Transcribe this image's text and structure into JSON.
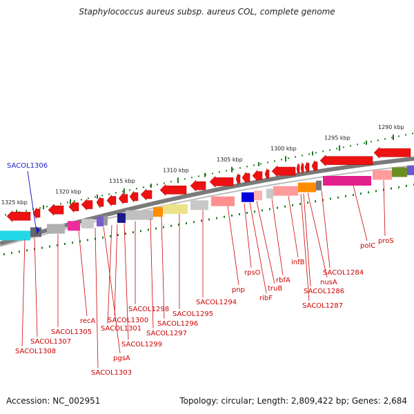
{
  "title": "Staphylococcus aureus subsp. aureus COL, complete genome",
  "footer": {
    "accession": "Accession: NC_002951",
    "summary": "Topology: circular; Length: 2,809,422 bp; Genes: 2,684"
  },
  "colors": {
    "backbone": "#7a7a7a",
    "gene": "#ee1111",
    "scale": "#1f7a1f",
    "label": "#cc0000",
    "highlight": "#1a1acc"
  },
  "scale_labels": [
    "1290 kbp",
    "1295 kbp",
    "1300 kbp",
    "1305 kbp",
    "1310 kbp",
    "1315 kbp",
    "1320 kbp",
    "1325 kbp"
  ],
  "highlighted_gene": "SACOL1306",
  "gene_labels": [
    "proS",
    "polC",
    "SACOL1284",
    "nusA",
    "SACOL1286",
    "SACOL1287",
    "infB",
    "rbfA",
    "truB",
    "ribF",
    "rpsO",
    "pnp",
    "SACOL1294",
    "SACOL1295",
    "SACOL1296",
    "SACOL1297",
    "SACOL1298",
    "SACOL1299",
    "SACOL1300",
    "SACOL1301",
    "pgsA",
    "SACOL1303",
    "recA",
    "SACOL1305",
    "SACOL1307",
    "SACOL1308"
  ]
}
